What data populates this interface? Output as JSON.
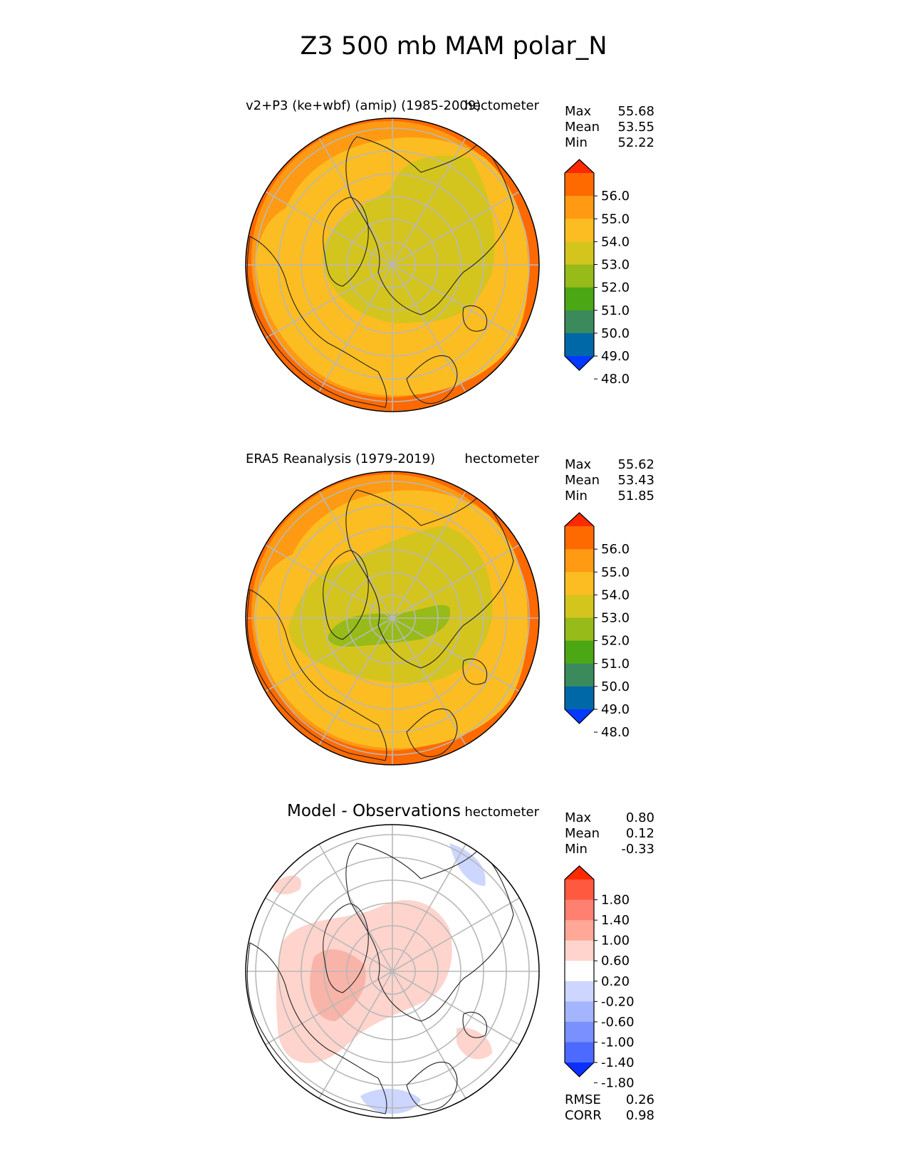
{
  "title": "Z3 500 mb MAM polar_N",
  "chart_data": [
    {
      "type": "heatmap",
      "projection": "north-polar-stereographic",
      "title": "v2+P3 (ke+wbf) (amip) (1985-2009)",
      "units": "hectometer",
      "stats": [
        {
          "label": "Max",
          "value": "55.68"
        },
        {
          "label": "Mean",
          "value": "53.55"
        },
        {
          "label": "Min",
          "value": "52.22"
        }
      ],
      "colorbar": {
        "ticks": [
          "56.0",
          "55.0",
          "54.0",
          "53.0",
          "52.0",
          "51.0",
          "50.0",
          "49.0",
          "48.0"
        ],
        "colors": [
          "#ff2a00",
          "#ff6a00",
          "#ff9a12",
          "#fcbd22",
          "#d4c51e",
          "#97bb18",
          "#4ca714",
          "#3a8a5c",
          "#0068a6",
          "#0039ff"
        ],
        "extend": "both"
      },
      "field": [
        {
          "level": "54-55",
          "color": "#ff9a12"
        },
        {
          "level": "53-54",
          "color": "#fcbd22"
        },
        {
          "level": "52-53",
          "color": "#d4c51e"
        }
      ]
    },
    {
      "type": "heatmap",
      "projection": "north-polar-stereographic",
      "title": "ERA5 Reanalysis (1979-2019)",
      "units": "hectometer",
      "stats": [
        {
          "label": "Max",
          "value": "55.62"
        },
        {
          "label": "Mean",
          "value": "53.43"
        },
        {
          "label": "Min",
          "value": "51.85"
        }
      ],
      "colorbar": {
        "ticks": [
          "56.0",
          "55.0",
          "54.0",
          "53.0",
          "52.0",
          "51.0",
          "50.0",
          "49.0",
          "48.0"
        ],
        "colors": [
          "#ff2a00",
          "#ff6a00",
          "#ff9a12",
          "#fcbd22",
          "#d4c51e",
          "#97bb18",
          "#4ca714",
          "#3a8a5c",
          "#0068a6",
          "#0039ff"
        ],
        "extend": "both"
      },
      "field": [
        {
          "level": "54-55",
          "color": "#ff9a12"
        },
        {
          "level": "53-54",
          "color": "#fcbd22"
        },
        {
          "level": "52-53",
          "color": "#d4c51e"
        },
        {
          "level": "51-52",
          "color": "#97bb18"
        }
      ]
    },
    {
      "type": "heatmap",
      "projection": "north-polar-stereographic",
      "title": "Model - Observations",
      "units": "hectometer",
      "stats": [
        {
          "label": "Max",
          "value": "0.80"
        },
        {
          "label": "Mean",
          "value": "0.12"
        },
        {
          "label": "Min",
          "value": "-0.33"
        }
      ],
      "colorbar": {
        "ticks": [
          "1.80",
          "1.40",
          "1.00",
          "0.60",
          "0.20",
          "-0.20",
          "-0.60",
          "-1.00",
          "-1.40",
          "-1.80"
        ],
        "colors": [
          "#ff2a00",
          "#ff5a40",
          "#ff8070",
          "#ffa898",
          "#ffd4cc",
          "#ffffff",
          "#ccd6ff",
          "#a4b4ff",
          "#7a90ff",
          "#4c6aff",
          "#0a30ff"
        ],
        "extend": "both"
      },
      "field": [
        {
          "level": "0.20-0.60",
          "color": "#ffd4cc"
        },
        {
          "level": "0.60-1.00",
          "color": "#f8b4a8"
        },
        {
          "level": "-0.60--0.20",
          "color": "#ccd6ff"
        }
      ],
      "metrics": [
        {
          "label": "RMSE",
          "value": "0.26"
        },
        {
          "label": "CORR",
          "value": "0.98"
        }
      ]
    }
  ]
}
